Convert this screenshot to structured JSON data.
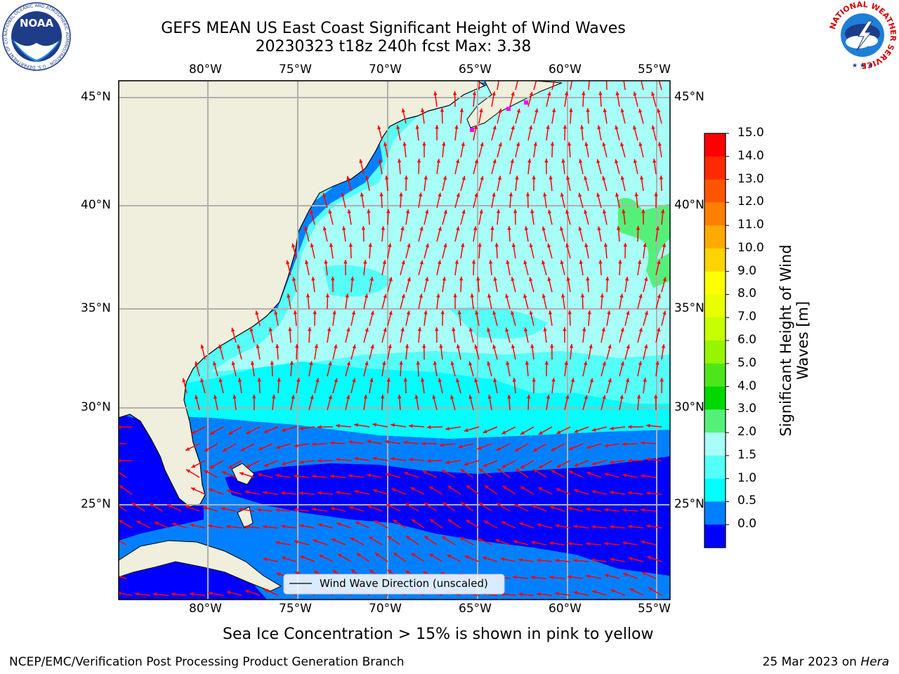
{
  "header": {
    "title_line1": "GEFS MEAN US East Coast Significant Height of Wind Waves",
    "title_line2": "20230323 t18z 240h fcst   Max: 3.38"
  },
  "map": {
    "lon_labels": [
      "80°W",
      "75°W",
      "70°W",
      "65°W",
      "60°W",
      "55°W"
    ],
    "lat_labels": [
      "45°N",
      "40°N",
      "35°N",
      "30°N",
      "25°N"
    ],
    "legend_label": "Wind Wave Direction (unscaled)"
  },
  "colorbar": {
    "title_line1": "Significant Height of Wind",
    "title_line2": "Waves [m]",
    "ticks": [
      "15.0",
      "14.0",
      "13.0",
      "12.0",
      "11.0",
      "10.0",
      "9.0",
      "8.0",
      "7.0",
      "6.0",
      "5.0",
      "4.0",
      "3.0",
      "2.0",
      "1.5",
      "1.0",
      "0.5",
      "0.0"
    ],
    "colors_top_to_bottom": [
      "#ff0000",
      "#ff2a00",
      "#ff5500",
      "#ff8000",
      "#ffaa00",
      "#ffd400",
      "#ffff00",
      "#e8ff00",
      "#c8ff00",
      "#96f500",
      "#4ee61a",
      "#00d800",
      "#55f07a",
      "#a8fff8",
      "#55fff8",
      "#00ffff",
      "#0080ff",
      "#0000ff"
    ]
  },
  "colors": {
    "land": "#f0eedc",
    "wave_0_05": "#0000ff",
    "wave_05_1": "#0080ff",
    "wave_1_15": "#00ffff",
    "wave_15_2": "#55fff8",
    "wave_2_3": "#a8fff8",
    "wave_3_4": "#55f07a",
    "arrow": "#ff0000",
    "grid": "#b0b0b0"
  },
  "subtitle": "Sea Ice Concentration > 15% is shown in pink to yellow",
  "footer": {
    "left": "NCEP/EMC/Verification Post Processing Product Generation Branch",
    "right_date": "25 Mar 2023 on",
    "right_host": "Hera"
  },
  "logos": {
    "noaa_text": "NOAA",
    "noaa_ring": "NATIONAL OCEANIC AND ATMOSPHERIC ADMINISTRATION · U.S. DEPARTMENT OF COMMERCE",
    "nws_ring": "NATIONAL WEATHER SERVICE"
  }
}
